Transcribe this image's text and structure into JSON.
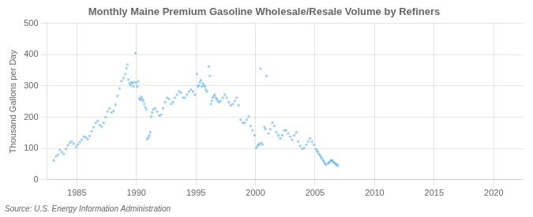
{
  "chart_data": {
    "type": "scatter",
    "title": "Monthly Maine Premium Gasoline Wholesale/Resale Volume by Refiners",
    "ylabel": "Thousand Gallons per Day",
    "annotations": [
      "Source: U.S. Energy Information Administration"
    ],
    "marker": "square",
    "grid": true,
    "xlim": [
      1982.5,
      2022.5
    ],
    "ylim": [
      0,
      500
    ],
    "xticks": [
      1985,
      1990,
      1995,
      2000,
      2005,
      2010,
      2015,
      2020
    ],
    "yticks": [
      0,
      100,
      200,
      300,
      400,
      500
    ],
    "x": [
      1983.08,
      1983.25,
      1983.42,
      1983.58,
      1983.75,
      1983.92,
      1984.08,
      1984.25,
      1984.42,
      1984.58,
      1984.75,
      1984.92,
      1985.08,
      1985.25,
      1985.42,
      1985.58,
      1985.75,
      1985.92,
      1986.08,
      1986.25,
      1986.42,
      1986.58,
      1986.75,
      1986.92,
      1987.08,
      1987.25,
      1987.42,
      1987.58,
      1987.75,
      1987.92,
      1988.08,
      1988.25,
      1988.42,
      1988.58,
      1988.75,
      1988.92,
      1989.08,
      1989.17,
      1989.25,
      1989.33,
      1989.42,
      1989.5,
      1989.58,
      1989.67,
      1989.75,
      1989.83,
      1989.92,
      1990,
      1990.08,
      1990.17,
      1990.25,
      1990.33,
      1990.42,
      1990.5,
      1990.58,
      1990.67,
      1990.75,
      1990.83,
      1990.92,
      1991,
      1991.08,
      1991.17,
      1991.25,
      1991.33,
      1991.42,
      1991.58,
      1991.75,
      1991.92,
      1992.08,
      1992.25,
      1992.42,
      1992.58,
      1992.75,
      1992.92,
      1993.08,
      1993.25,
      1993.42,
      1993.58,
      1993.75,
      1993.92,
      1994.08,
      1994.25,
      1994.42,
      1994.58,
      1994.75,
      1994.92,
      1995.08,
      1995.17,
      1995.25,
      1995.33,
      1995.42,
      1995.5,
      1995.58,
      1995.67,
      1995.75,
      1995.83,
      1995.92,
      1996.08,
      1996.17,
      1996.25,
      1996.33,
      1996.42,
      1996.5,
      1996.58,
      1996.67,
      1996.75,
      1996.83,
      1996.92,
      1997.08,
      1997.25,
      1997.42,
      1997.58,
      1997.75,
      1997.92,
      1998.08,
      1998.25,
      1998.42,
      1998.58,
      1998.75,
      1998.92,
      1999.08,
      1999.25,
      1999.42,
      1999.58,
      1999.75,
      1999.92,
      2000.08,
      2000.17,
      2000.25,
      2000.33,
      2000.42,
      2000.5,
      2000.58,
      2000.75,
      2000.83,
      2000.92,
      2001.08,
      2001.25,
      2001.42,
      2001.58,
      2001.75,
      2001.92,
      2002.08,
      2002.25,
      2002.42,
      2002.58,
      2002.75,
      2002.92,
      2003.08,
      2003.25,
      2003.42,
      2003.58,
      2003.75,
      2003.92,
      2004.08,
      2004.25,
      2004.42,
      2004.58,
      2004.75,
      2004.92,
      2005.08,
      2005.17,
      2005.25,
      2005.33,
      2005.42,
      2005.5,
      2005.58,
      2005.67,
      2005.75,
      2005.83,
      2005.92,
      2006.08,
      2006.17,
      2006.25,
      2006.33,
      2006.42,
      2006.5,
      2006.58,
      2006.67,
      2006.75,
      2006.83,
      2006.92
    ],
    "values": [
      62,
      75,
      80,
      95,
      88,
      82,
      98,
      110,
      118,
      122,
      115,
      105,
      112,
      120,
      128,
      138,
      135,
      130,
      140,
      155,
      168,
      182,
      188,
      175,
      170,
      182,
      200,
      218,
      228,
      215,
      220,
      240,
      268,
      292,
      315,
      325,
      338,
      356,
      368,
      320,
      308,
      302,
      312,
      308,
      298,
      312,
      405,
      310,
      298,
      315,
      260,
      255,
      265,
      258,
      252,
      242,
      232,
      225,
      130,
      135,
      142,
      152,
      202,
      215,
      225,
      228,
      218,
      205,
      208,
      228,
      248,
      262,
      258,
      242,
      248,
      262,
      272,
      282,
      278,
      262,
      262,
      272,
      282,
      288,
      282,
      272,
      338,
      298,
      302,
      312,
      318,
      298,
      308,
      302,
      298,
      288,
      282,
      362,
      332,
      242,
      252,
      262,
      268,
      272,
      262,
      258,
      252,
      248,
      252,
      262,
      272,
      262,
      248,
      238,
      242,
      252,
      262,
      238,
      192,
      182,
      182,
      192,
      202,
      172,
      158,
      142,
      102,
      108,
      112,
      115,
      355,
      118,
      112,
      168,
      162,
      332,
      148,
      162,
      182,
      172,
      152,
      142,
      132,
      142,
      158,
      158,
      148,
      138,
      128,
      142,
      152,
      122,
      108,
      98,
      102,
      112,
      122,
      132,
      122,
      112,
      98,
      92,
      88,
      82,
      78,
      72,
      68,
      62,
      58,
      52,
      48,
      52,
      55,
      58,
      62,
      62,
      58,
      55,
      52,
      50,
      48,
      45
    ]
  }
}
